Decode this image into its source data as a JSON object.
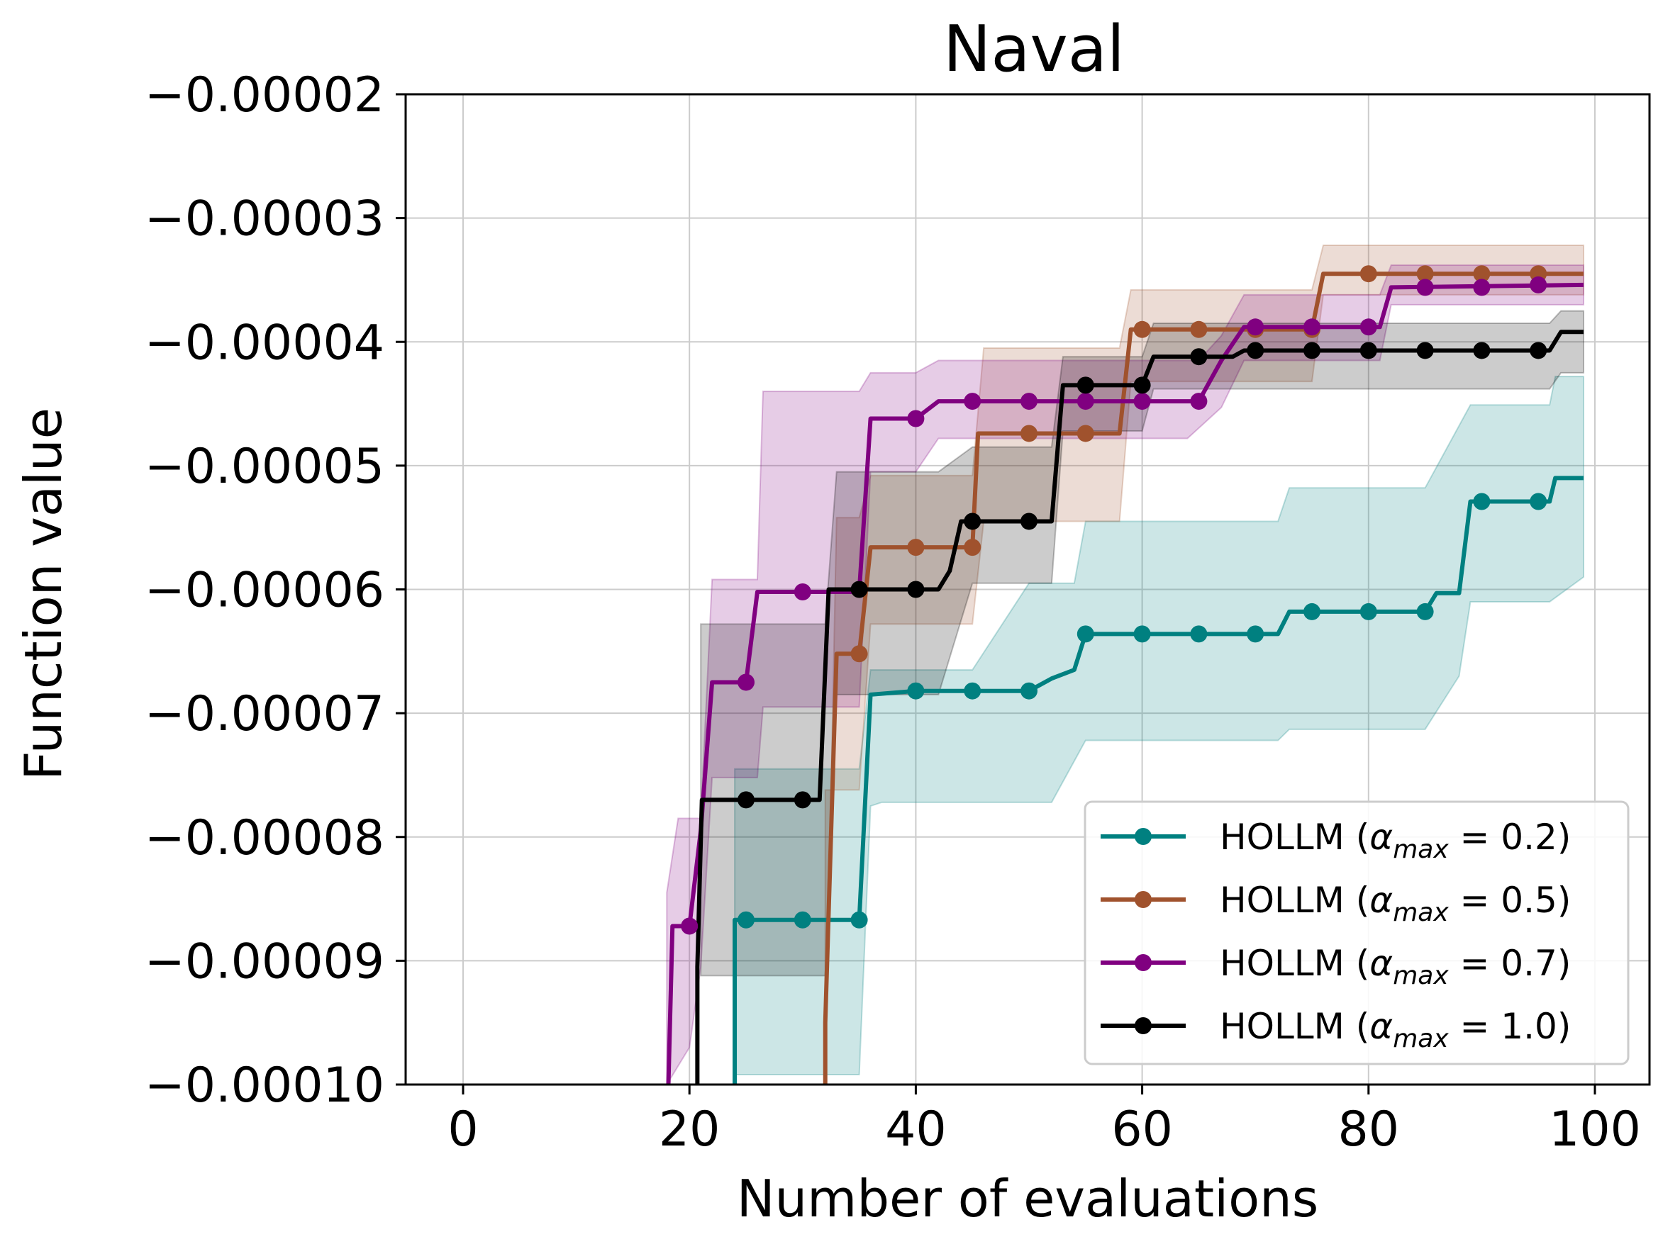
{
  "chart_data": {
    "type": "line",
    "title": "Naval",
    "xlabel": "Number of evaluations",
    "ylabel": "Function value",
    "xlim": [
      -5,
      104
    ],
    "ylim": [
      -0.0001,
      -2e-05
    ],
    "xticks": [
      0,
      20,
      40,
      60,
      80,
      100
    ],
    "xtick_labels": [
      "0",
      "20",
      "40",
      "60",
      "80",
      "100"
    ],
    "yticks": [
      -2e-05,
      -3e-05,
      -4e-05,
      -5e-05,
      -6e-05,
      -7e-05,
      -8e-05,
      -9e-05,
      -0.0001
    ],
    "ytick_labels": [
      "−0.00002",
      "−0.00003",
      "−0.00004",
      "−0.00005",
      "−0.00006",
      "−0.00007",
      "−0.00008",
      "−0.00009",
      "−0.00010"
    ],
    "grid": true,
    "legend_position": "lower-right",
    "series": [
      {
        "name": "HOLLM (αmax = 0.2)",
        "legend_prefix": "HOLLM (",
        "legend_alpha": "α",
        "legend_sub": "max",
        "legend_suffix": " = 0.2)",
        "color": "#008080",
        "mean": [
          [
            24,
            -0.000105
          ],
          [
            24,
            -8.67e-05
          ],
          [
            35,
            -8.67e-05
          ],
          [
            36,
            -6.85e-05
          ],
          [
            40,
            -6.82e-05
          ],
          [
            50,
            -6.82e-05
          ],
          [
            52,
            -6.72e-05
          ],
          [
            54,
            -6.65e-05
          ],
          [
            55,
            -6.36e-05
          ],
          [
            72,
            -6.36e-05
          ],
          [
            73,
            -6.18e-05
          ],
          [
            85,
            -6.18e-05
          ],
          [
            86,
            -6.03e-05
          ],
          [
            88,
            -6.03e-05
          ],
          [
            89,
            -5.29e-05
          ],
          [
            96,
            -5.29e-05
          ],
          [
            96.5,
            -5.1e-05
          ],
          [
            99,
            -5.1e-05
          ]
        ],
        "upper": [
          [
            24,
            -7.45e-05
          ],
          [
            35,
            -7.45e-05
          ],
          [
            36,
            -6.65e-05
          ],
          [
            45,
            -6.65e-05
          ],
          [
            50,
            -5.95e-05
          ],
          [
            54,
            -5.95e-05
          ],
          [
            55,
            -5.45e-05
          ],
          [
            72,
            -5.45e-05
          ],
          [
            73,
            -5.18e-05
          ],
          [
            85,
            -5.18e-05
          ],
          [
            89,
            -4.51e-05
          ],
          [
            96,
            -4.51e-05
          ],
          [
            96.5,
            -4.28e-05
          ],
          [
            99,
            -4.28e-05
          ]
        ],
        "lower": [
          [
            24,
            -9.92e-05
          ],
          [
            35,
            -9.92e-05
          ],
          [
            36,
            -7.75e-05
          ],
          [
            37,
            -7.72e-05
          ],
          [
            52,
            -7.72e-05
          ],
          [
            55,
            -7.22e-05
          ],
          [
            72,
            -7.22e-05
          ],
          [
            73,
            -7.13e-05
          ],
          [
            85,
            -7.13e-05
          ],
          [
            88,
            -6.7e-05
          ],
          [
            89,
            -6.1e-05
          ],
          [
            96,
            -6.1e-05
          ],
          [
            99,
            -5.9e-05
          ]
        ],
        "markers": [
          [
            25,
            -8.67e-05
          ],
          [
            30,
            -8.67e-05
          ],
          [
            35,
            -8.67e-05
          ],
          [
            40,
            -6.82e-05
          ],
          [
            45,
            -6.82e-05
          ],
          [
            50,
            -6.82e-05
          ],
          [
            55,
            -6.36e-05
          ],
          [
            60,
            -6.36e-05
          ],
          [
            65,
            -6.36e-05
          ],
          [
            70,
            -6.36e-05
          ],
          [
            75,
            -6.18e-05
          ],
          [
            80,
            -6.18e-05
          ],
          [
            85,
            -6.18e-05
          ],
          [
            90,
            -5.29e-05
          ],
          [
            95,
            -5.29e-05
          ]
        ]
      },
      {
        "name": "HOLLM (αmax = 0.5)",
        "legend_prefix": "HOLLM (",
        "legend_alpha": "α",
        "legend_sub": "max",
        "legend_suffix": " = 0.5)",
        "color": "#a0522d",
        "mean": [
          [
            32,
            -0.000105
          ],
          [
            32,
            -9.5e-05
          ],
          [
            33,
            -6.52e-05
          ],
          [
            35,
            -6.52e-05
          ],
          [
            36,
            -5.66e-05
          ],
          [
            45,
            -5.66e-05
          ],
          [
            45.5,
            -4.74e-05
          ],
          [
            58,
            -4.74e-05
          ],
          [
            59,
            -3.9e-05
          ],
          [
            75,
            -3.9e-05
          ],
          [
            76,
            -3.45e-05
          ],
          [
            99,
            -3.45e-05
          ]
        ],
        "upper": [
          [
            33,
            -5.42e-05
          ],
          [
            35,
            -5.42e-05
          ],
          [
            36,
            -5.08e-05
          ],
          [
            45,
            -5.08e-05
          ],
          [
            46,
            -4.05e-05
          ],
          [
            58,
            -4.05e-05
          ],
          [
            59,
            -3.58e-05
          ],
          [
            75,
            -3.58e-05
          ],
          [
            76,
            -3.22e-05
          ],
          [
            99,
            -3.22e-05
          ]
        ],
        "lower": [
          [
            32,
            -0.0001
          ],
          [
            32,
            -7.62e-05
          ],
          [
            35,
            -7.62e-05
          ],
          [
            36,
            -6.28e-05
          ],
          [
            45,
            -6.28e-05
          ],
          [
            46,
            -5.45e-05
          ],
          [
            58,
            -5.45e-05
          ],
          [
            59,
            -4.32e-05
          ],
          [
            75,
            -4.32e-05
          ],
          [
            76,
            -3.62e-05
          ],
          [
            99,
            -3.62e-05
          ]
        ],
        "markers": [
          [
            35,
            -6.52e-05
          ],
          [
            40,
            -5.66e-05
          ],
          [
            45,
            -5.66e-05
          ],
          [
            50,
            -4.74e-05
          ],
          [
            55,
            -4.74e-05
          ],
          [
            60,
            -3.9e-05
          ],
          [
            65,
            -3.9e-05
          ],
          [
            70,
            -3.9e-05
          ],
          [
            75,
            -3.9e-05
          ],
          [
            80,
            -3.45e-05
          ],
          [
            85,
            -3.45e-05
          ],
          [
            90,
            -3.45e-05
          ],
          [
            95,
            -3.45e-05
          ]
        ]
      },
      {
        "name": "HOLLM (αmax = 0.7)",
        "legend_prefix": "HOLLM (",
        "legend_alpha": "α",
        "legend_sub": "max",
        "legend_suffix": " = 0.7)",
        "color": "#800080",
        "mean": [
          [
            18,
            -0.000105
          ],
          [
            18.5,
            -8.72e-05
          ],
          [
            20,
            -8.72e-05
          ],
          [
            21,
            -7.95e-05
          ],
          [
            22,
            -6.75e-05
          ],
          [
            25,
            -6.75e-05
          ],
          [
            26,
            -6.02e-05
          ],
          [
            35,
            -6.02e-05
          ],
          [
            36,
            -4.62e-05
          ],
          [
            40,
            -4.62e-05
          ],
          [
            42,
            -4.48e-05
          ],
          [
            65,
            -4.48e-05
          ],
          [
            67,
            -4.15e-05
          ],
          [
            69,
            -3.88e-05
          ],
          [
            76,
            -3.88e-05
          ],
          [
            78,
            -3.88e-05
          ],
          [
            81,
            -3.88e-05
          ],
          [
            82,
            -3.56e-05
          ],
          [
            99,
            -3.54e-05
          ]
        ],
        "upper": [
          [
            18,
            -8.45e-05
          ],
          [
            19,
            -7.85e-05
          ],
          [
            21,
            -7.85e-05
          ],
          [
            22,
            -5.92e-05
          ],
          [
            26,
            -5.92e-05
          ],
          [
            26.5,
            -4.4e-05
          ],
          [
            35,
            -4.4e-05
          ],
          [
            36,
            -4.25e-05
          ],
          [
            40,
            -4.25e-05
          ],
          [
            42,
            -4.15e-05
          ],
          [
            65,
            -4.15e-05
          ],
          [
            67,
            -3.95e-05
          ],
          [
            69,
            -3.62e-05
          ],
          [
            81,
            -3.62e-05
          ],
          [
            82,
            -3.38e-05
          ],
          [
            99,
            -3.38e-05
          ]
        ],
        "lower": [
          [
            18,
            -0.0001
          ],
          [
            20,
            -9.7e-05
          ],
          [
            21,
            -9.05e-05
          ],
          [
            22,
            -7.52e-05
          ],
          [
            26,
            -7.52e-05
          ],
          [
            26.5,
            -6.95e-05
          ],
          [
            35,
            -6.95e-05
          ],
          [
            36,
            -5.05e-05
          ],
          [
            40,
            -5.05e-05
          ],
          [
            42,
            -4.78e-05
          ],
          [
            64,
            -4.78e-05
          ],
          [
            67,
            -4.53e-05
          ],
          [
            69,
            -4.15e-05
          ],
          [
            81,
            -4.15e-05
          ],
          [
            82,
            -3.7e-05
          ],
          [
            99,
            -3.7e-05
          ]
        ],
        "markers": [
          [
            20,
            -8.72e-05
          ],
          [
            25,
            -6.75e-05
          ],
          [
            30,
            -6.02e-05
          ],
          [
            40,
            -4.62e-05
          ],
          [
            45,
            -4.48e-05
          ],
          [
            50,
            -4.48e-05
          ],
          [
            55,
            -4.48e-05
          ],
          [
            60,
            -4.48e-05
          ],
          [
            65,
            -4.48e-05
          ],
          [
            70,
            -3.88e-05
          ],
          [
            75,
            -3.88e-05
          ],
          [
            80,
            -3.88e-05
          ],
          [
            85,
            -3.56e-05
          ],
          [
            90,
            -3.56e-05
          ],
          [
            95,
            -3.54e-05
          ]
        ]
      },
      {
        "name": "HOLLM (αmax = 1.0)",
        "legend_prefix": "HOLLM (",
        "legend_alpha": "α",
        "legend_sub": "max",
        "legend_suffix": " = 1.0)",
        "color": "#000000",
        "mean": [
          [
            20.7,
            -0.000105
          ],
          [
            20.7,
            -9.05e-05
          ],
          [
            21.1,
            -7.7e-05
          ],
          [
            31.5,
            -7.7e-05
          ],
          [
            32.3,
            -6e-05
          ],
          [
            42,
            -6e-05
          ],
          [
            43,
            -5.85e-05
          ],
          [
            44,
            -5.45e-05
          ],
          [
            52,
            -5.45e-05
          ],
          [
            53,
            -4.35e-05
          ],
          [
            60,
            -4.35e-05
          ],
          [
            61,
            -4.12e-05
          ],
          [
            68,
            -4.12e-05
          ],
          [
            69,
            -4.07e-05
          ],
          [
            96,
            -4.07e-05
          ],
          [
            97,
            -3.92e-05
          ],
          [
            99,
            -3.92e-05
          ]
        ],
        "upper": [
          [
            21,
            -6.28e-05
          ],
          [
            32,
            -6.28e-05
          ],
          [
            33,
            -5.05e-05
          ],
          [
            42,
            -5.05e-05
          ],
          [
            45,
            -4.85e-05
          ],
          [
            52,
            -4.85e-05
          ],
          [
            53,
            -4.12e-05
          ],
          [
            60,
            -4.12e-05
          ],
          [
            61,
            -3.85e-05
          ],
          [
            96,
            -3.85e-05
          ],
          [
            97,
            -3.75e-05
          ],
          [
            99,
            -3.75e-05
          ]
        ],
        "lower": [
          [
            21,
            -9.12e-05
          ],
          [
            32,
            -9.12e-05
          ],
          [
            33,
            -6.85e-05
          ],
          [
            42,
            -6.85e-05
          ],
          [
            45,
            -5.95e-05
          ],
          [
            52,
            -5.95e-05
          ],
          [
            53,
            -4.72e-05
          ],
          [
            60,
            -4.72e-05
          ],
          [
            61,
            -4.38e-05
          ],
          [
            96,
            -4.38e-05
          ],
          [
            97,
            -4.25e-05
          ],
          [
            99,
            -4.25e-05
          ]
        ],
        "markers": [
          [
            25,
            -7.7e-05
          ],
          [
            30,
            -7.7e-05
          ],
          [
            35,
            -6e-05
          ],
          [
            40,
            -6e-05
          ],
          [
            45,
            -5.45e-05
          ],
          [
            50,
            -5.45e-05
          ],
          [
            55,
            -4.35e-05
          ],
          [
            60,
            -4.35e-05
          ],
          [
            65,
            -4.12e-05
          ],
          [
            70,
            -4.07e-05
          ],
          [
            75,
            -4.07e-05
          ],
          [
            80,
            -4.07e-05
          ],
          [
            85,
            -4.07e-05
          ],
          [
            90,
            -4.07e-05
          ],
          [
            95,
            -4.07e-05
          ]
        ]
      }
    ]
  }
}
